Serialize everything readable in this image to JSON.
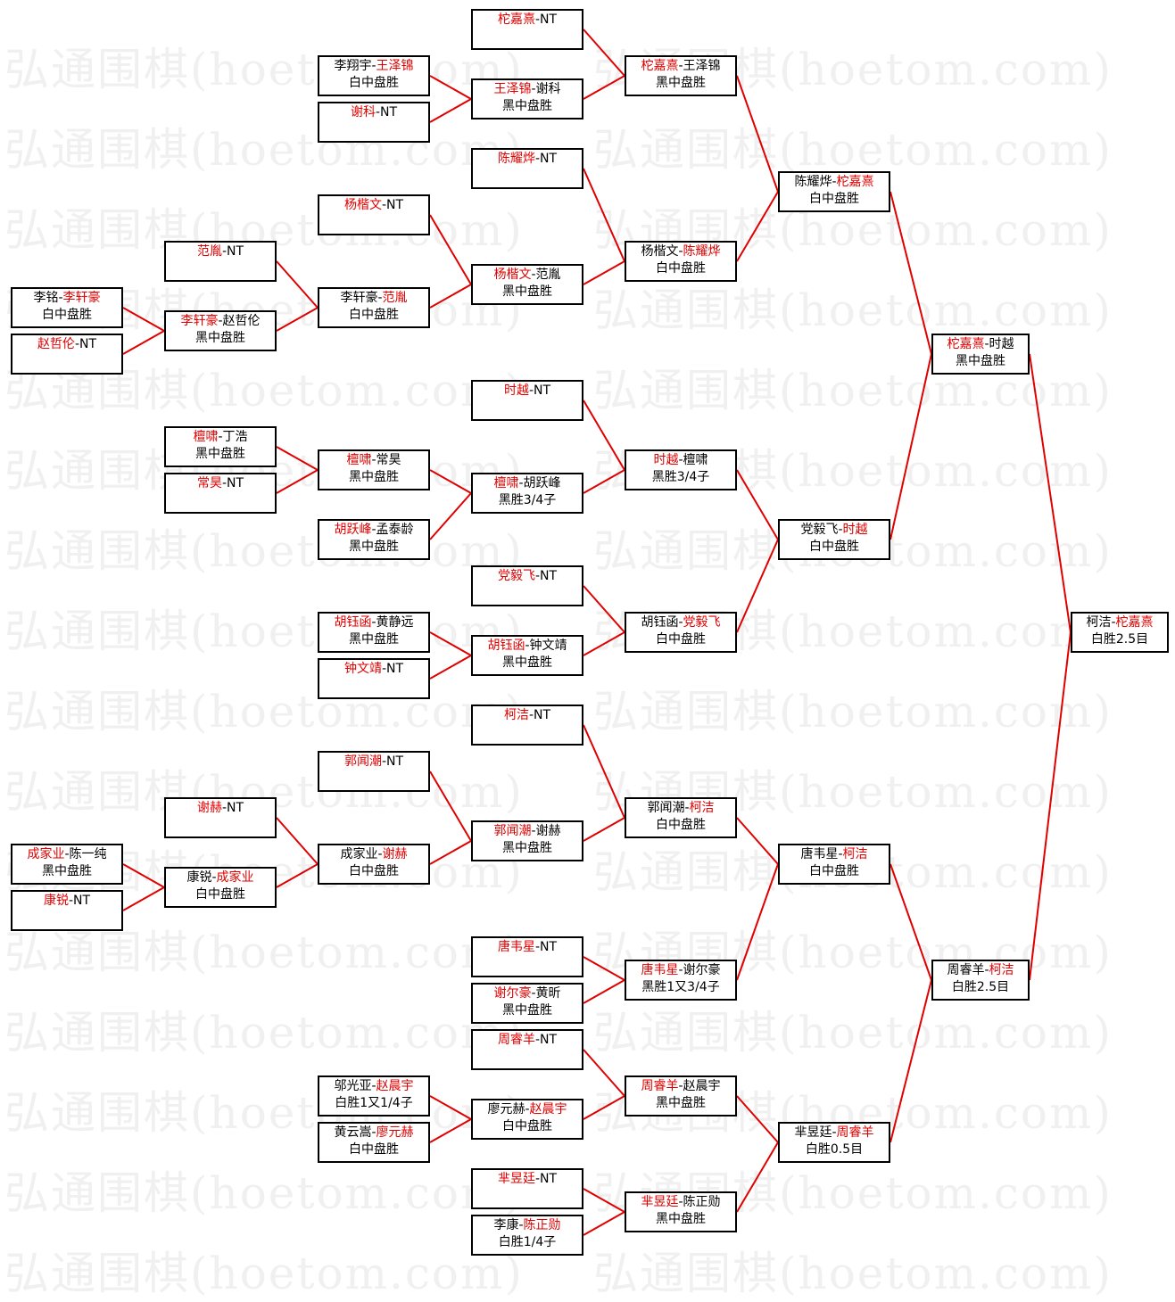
{
  "watermark": "弘通围棋(hoetom.com)",
  "colors": {
    "winner": "#e00000",
    "line": "#e00000",
    "border": "#000000"
  },
  "matches": [
    {
      "p1": "李铭",
      "p2": "李轩豪",
      "winner": 2,
      "result": "白中盘胜"
    },
    {
      "p1": "赵哲伦",
      "p2": "NT",
      "winner": 1,
      "result": ""
    },
    {
      "p1": "成家业",
      "p2": "陈一纯",
      "winner": 1,
      "result": "黑中盘胜"
    },
    {
      "p1": "康锐",
      "p2": "NT",
      "winner": 1,
      "result": ""
    },
    {
      "p1": "范胤",
      "p2": "NT",
      "winner": 1,
      "result": ""
    },
    {
      "p1": "李轩豪",
      "p2": "赵哲伦",
      "winner": 1,
      "result": "黑中盘胜"
    },
    {
      "p1": "檀啸",
      "p2": "丁浩",
      "winner": 1,
      "result": "黑中盘胜"
    },
    {
      "p1": "常昊",
      "p2": "NT",
      "winner": 1,
      "result": ""
    },
    {
      "p1": "谢赫",
      "p2": "NT",
      "winner": 1,
      "result": ""
    },
    {
      "p1": "康锐",
      "p2": "成家业",
      "winner": 2,
      "result": "白中盘胜"
    },
    {
      "p1": "李翔宇",
      "p2": "王泽锦",
      "winner": 2,
      "result": "白中盘胜"
    },
    {
      "p1": "谢科",
      "p2": "NT",
      "winner": 1,
      "result": ""
    },
    {
      "p1": "杨楷文",
      "p2": "NT",
      "winner": 1,
      "result": ""
    },
    {
      "p1": "李轩豪",
      "p2": "范胤",
      "winner": 2,
      "result": "白中盘胜"
    },
    {
      "p1": "檀啸",
      "p2": "常昊",
      "winner": 1,
      "result": "黑中盘胜"
    },
    {
      "p1": "胡跃峰",
      "p2": "孟泰龄",
      "winner": 1,
      "result": "黑中盘胜"
    },
    {
      "p1": "胡钰函",
      "p2": "黄静远",
      "winner": 1,
      "result": "黑中盘胜"
    },
    {
      "p1": "钟文靖",
      "p2": "NT",
      "winner": 1,
      "result": ""
    },
    {
      "p1": "郭闻潮",
      "p2": "NT",
      "winner": 1,
      "result": ""
    },
    {
      "p1": "成家业",
      "p2": "谢赫",
      "winner": 2,
      "result": "白中盘胜"
    },
    {
      "p1": "邬光亚",
      "p2": "赵晨宇",
      "winner": 2,
      "result": "白胜1又1/4子"
    },
    {
      "p1": "黄云嵩",
      "p2": "廖元赫",
      "winner": 2,
      "result": "白中盘胜"
    },
    {
      "p1": "柁嘉熹",
      "p2": "NT",
      "winner": 1,
      "result": ""
    },
    {
      "p1": "王泽锦",
      "p2": "谢科",
      "winner": 1,
      "result": "黑中盘胜"
    },
    {
      "p1": "陈耀烨",
      "p2": "NT",
      "winner": 1,
      "result": ""
    },
    {
      "p1": "杨楷文",
      "p2": "范胤",
      "winner": 1,
      "result": "黑中盘胜"
    },
    {
      "p1": "时越",
      "p2": "NT",
      "winner": 1,
      "result": ""
    },
    {
      "p1": "檀啸",
      "p2": "胡跃峰",
      "winner": 1,
      "result": "黑胜3/4子"
    },
    {
      "p1": "党毅飞",
      "p2": "NT",
      "winner": 1,
      "result": ""
    },
    {
      "p1": "胡钰函",
      "p2": "钟文靖",
      "winner": 1,
      "result": "黑中盘胜"
    },
    {
      "p1": "柯洁",
      "p2": "NT",
      "winner": 1,
      "result": ""
    },
    {
      "p1": "郭闻潮",
      "p2": "谢赫",
      "winner": 1,
      "result": "黑中盘胜"
    },
    {
      "p1": "唐韦星",
      "p2": "NT",
      "winner": 1,
      "result": ""
    },
    {
      "p1": "谢尔豪",
      "p2": "黄昕",
      "winner": 1,
      "result": "黑中盘胜"
    },
    {
      "p1": "周睿羊",
      "p2": "NT",
      "winner": 1,
      "result": ""
    },
    {
      "p1": "廖元赫",
      "p2": "赵晨宇",
      "winner": 2,
      "result": "白中盘胜"
    },
    {
      "p1": "芈昱廷",
      "p2": "NT",
      "winner": 1,
      "result": ""
    },
    {
      "p1": "李康",
      "p2": "陈正勋",
      "winner": 2,
      "result": "白胜1/4子"
    },
    {
      "p1": "柁嘉熹",
      "p2": "王泽锦",
      "winner": 1,
      "result": "黑中盘胜"
    },
    {
      "p1": "杨楷文",
      "p2": "陈耀烨",
      "winner": 2,
      "result": "白中盘胜"
    },
    {
      "p1": "时越",
      "p2": "檀啸",
      "winner": 1,
      "result": "黑胜3/4子"
    },
    {
      "p1": "胡钰函",
      "p2": "党毅飞",
      "winner": 2,
      "result": "白中盘胜"
    },
    {
      "p1": "郭闻潮",
      "p2": "柯洁",
      "winner": 2,
      "result": "白中盘胜"
    },
    {
      "p1": "唐韦星",
      "p2": "谢尔豪",
      "winner": 1,
      "result": "黑胜1又3/4子"
    },
    {
      "p1": "周睿羊",
      "p2": "赵晨宇",
      "winner": 1,
      "result": "黑中盘胜"
    },
    {
      "p1": "芈昱廷",
      "p2": "陈正勋",
      "winner": 1,
      "result": "黑中盘胜"
    },
    {
      "p1": "陈耀烨",
      "p2": "柁嘉熹",
      "winner": 2,
      "result": "白中盘胜"
    },
    {
      "p1": "党毅飞",
      "p2": "时越",
      "winner": 2,
      "result": "白中盘胜"
    },
    {
      "p1": "唐韦星",
      "p2": "柯洁",
      "winner": 2,
      "result": "白中盘胜"
    },
    {
      "p1": "芈昱廷",
      "p2": "周睿羊",
      "winner": 2,
      "result": "白胜0.5目"
    },
    {
      "p1": "柁嘉熹",
      "p2": "时越",
      "winner": 1,
      "result": "黑中盘胜"
    },
    {
      "p1": "周睿羊",
      "p2": "柯洁",
      "winner": 2,
      "result": "白胜2.5目"
    },
    {
      "p1": "柯洁",
      "p2": "柁嘉熹",
      "winner": 2,
      "result": "白胜2.5目"
    }
  ]
}
